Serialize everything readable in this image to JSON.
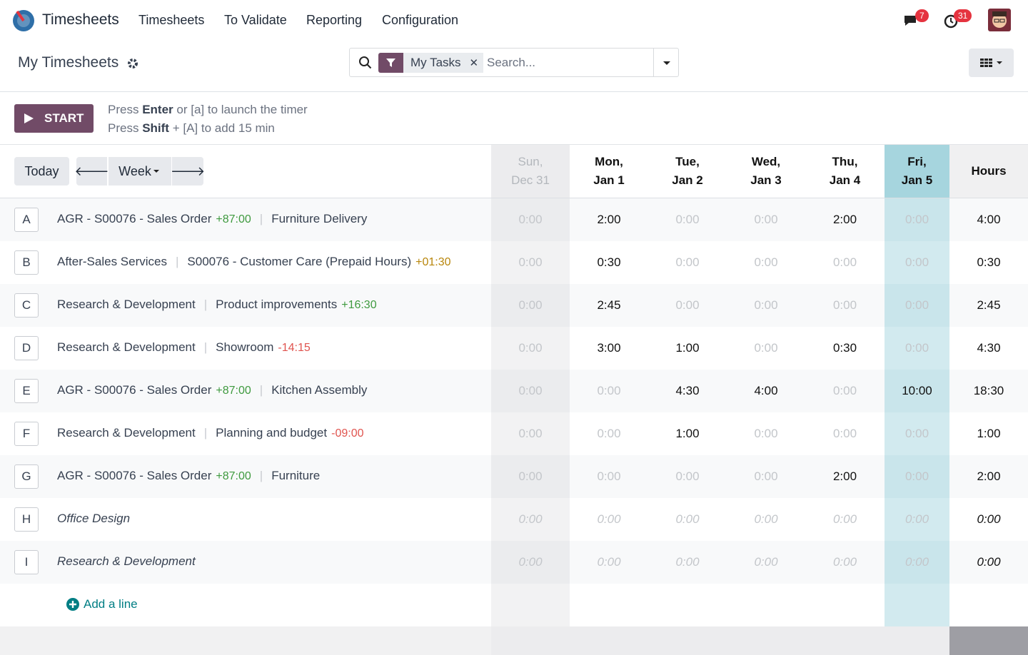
{
  "navbar": {
    "app": "Timesheets",
    "menu": [
      "Timesheets",
      "To Validate",
      "Reporting",
      "Configuration"
    ],
    "messages_badge": "7",
    "activity_badge": "31"
  },
  "control_panel": {
    "title": "My Timesheets",
    "filter": "My Tasks",
    "search_placeholder": "Search..."
  },
  "timer": {
    "button": "START",
    "hint1": {
      "before": "Press",
      "key": "Enter",
      "after": "or [a] to launch the timer"
    },
    "hint2": {
      "before": "Press",
      "key": "Shift",
      "after": "+ [A] to add 15 min"
    }
  },
  "toolbar": {
    "today": "Today",
    "period": "Week"
  },
  "grid": {
    "columns": [
      {
        "day": "Sun,",
        "date": "Dec 31"
      },
      {
        "day": "Mon,",
        "date": "Jan 1"
      },
      {
        "day": "Tue,",
        "date": "Jan 2"
      },
      {
        "day": "Wed,",
        "date": "Jan 3"
      },
      {
        "day": "Thu,",
        "date": "Jan 4"
      },
      {
        "day": "Fri,",
        "date": "Jan 5"
      }
    ],
    "total_header": "Hours",
    "rows": [
      {
        "key": "A",
        "project": "AGR - S00076 - Sales Order",
        "project_delta": {
          "text": "+87:00",
          "color": "#3f9a3f"
        },
        "task": "Furniture Delivery",
        "values": [
          "0:00",
          "2:00",
          "0:00",
          "0:00",
          "2:00",
          "0:00"
        ],
        "total": "4:00"
      },
      {
        "key": "B",
        "project": "After-Sales Services",
        "task": "S00076 - Customer Care (Prepaid Hours)",
        "task_delta": {
          "text": "+01:30",
          "color": "#b8860b"
        },
        "values": [
          "0:00",
          "0:30",
          "0:00",
          "0:00",
          "0:00",
          "0:00"
        ],
        "total": "0:30"
      },
      {
        "key": "C",
        "project": "Research & Development",
        "task": "Product improvements",
        "task_delta": {
          "text": "+16:30",
          "color": "#3f9a3f"
        },
        "values": [
          "0:00",
          "2:45",
          "0:00",
          "0:00",
          "0:00",
          "0:00"
        ],
        "total": "2:45"
      },
      {
        "key": "D",
        "project": "Research & Development",
        "task": "Showroom",
        "task_delta": {
          "text": "-14:15",
          "color": "#e0544f"
        },
        "values": [
          "0:00",
          "3:00",
          "1:00",
          "0:00",
          "0:30",
          "0:00"
        ],
        "total": "4:30"
      },
      {
        "key": "E",
        "project": "AGR - S00076 - Sales Order",
        "project_delta": {
          "text": "+87:00",
          "color": "#3f9a3f"
        },
        "task": "Kitchen Assembly",
        "values": [
          "0:00",
          "0:00",
          "4:30",
          "4:00",
          "0:00",
          "10:00"
        ],
        "total": "18:30"
      },
      {
        "key": "F",
        "project": "Research & Development",
        "task": "Planning and budget",
        "task_delta": {
          "text": "-09:00",
          "color": "#e0544f"
        },
        "values": [
          "0:00",
          "0:00",
          "1:00",
          "0:00",
          "0:00",
          "0:00"
        ],
        "total": "1:00"
      },
      {
        "key": "G",
        "project": "AGR - S00076 - Sales Order",
        "project_delta": {
          "text": "+87:00",
          "color": "#3f9a3f"
        },
        "task": "Furniture",
        "values": [
          "0:00",
          "0:00",
          "0:00",
          "0:00",
          "2:00",
          "0:00"
        ],
        "total": "2:00"
      },
      {
        "key": "H",
        "project": "Office Design",
        "values": [
          "0:00",
          "0:00",
          "0:00",
          "0:00",
          "0:00",
          "0:00"
        ],
        "total": "0:00"
      },
      {
        "key": "I",
        "project": "Research & Development",
        "values": [
          "0:00",
          "0:00",
          "0:00",
          "0:00",
          "0:00",
          "0:00"
        ],
        "total": "0:00"
      }
    ],
    "add_line": "Add a line"
  }
}
